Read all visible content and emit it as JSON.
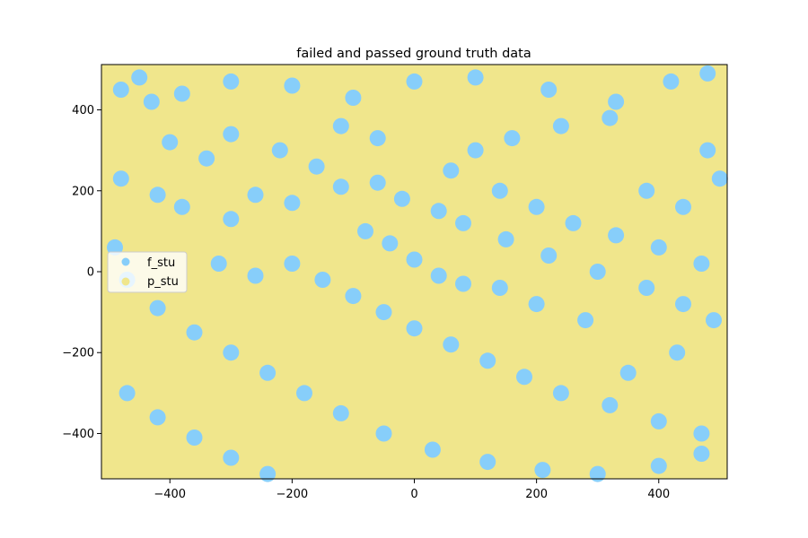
{
  "chart_data": {
    "type": "scatter",
    "title": "failed and passed ground truth data",
    "xlabel": "",
    "ylabel": "",
    "xlim": [
      -512,
      512
    ],
    "ylim": [
      -512,
      512
    ],
    "xticks": [
      -400,
      -200,
      0,
      200,
      400
    ],
    "yticks": [
      400,
      200,
      0,
      -200,
      -400
    ],
    "xtick_labels": [
      "−400",
      "−200",
      "0",
      "200",
      "400"
    ],
    "ytick_labels": [
      "400",
      "200",
      "0",
      "−200",
      "−400"
    ],
    "grid": false,
    "legend_position": "center-left",
    "series": [
      {
        "name": "f_stu",
        "color": "#87CEFA",
        "points": [
          [
            -480,
            450
          ],
          [
            -430,
            420
          ],
          [
            -380,
            440
          ],
          [
            -300,
            470
          ],
          [
            -200,
            460
          ],
          [
            -100,
            430
          ],
          [
            0,
            470
          ],
          [
            100,
            480
          ],
          [
            220,
            450
          ],
          [
            330,
            420
          ],
          [
            420,
            470
          ],
          [
            480,
            490
          ],
          [
            -480,
            230
          ],
          [
            -420,
            190
          ],
          [
            -380,
            160
          ],
          [
            -300,
            130
          ],
          [
            -260,
            190
          ],
          [
            -200,
            170
          ],
          [
            -120,
            210
          ],
          [
            -60,
            220
          ],
          [
            -20,
            180
          ],
          [
            40,
            150
          ],
          [
            80,
            120
          ],
          [
            150,
            80
          ],
          [
            220,
            40
          ],
          [
            300,
            0
          ],
          [
            380,
            -40
          ],
          [
            440,
            -80
          ],
          [
            490,
            -120
          ],
          [
            -490,
            60
          ],
          [
            -470,
            -20
          ],
          [
            -420,
            -90
          ],
          [
            -360,
            -150
          ],
          [
            -300,
            -200
          ],
          [
            -240,
            -250
          ],
          [
            -180,
            -300
          ],
          [
            -120,
            -350
          ],
          [
            -50,
            -400
          ],
          [
            30,
            -440
          ],
          [
            120,
            -470
          ],
          [
            210,
            -490
          ],
          [
            300,
            -500
          ],
          [
            400,
            -480
          ],
          [
            470,
            -450
          ],
          [
            -200,
            20
          ],
          [
            -150,
            -20
          ],
          [
            -100,
            -60
          ],
          [
            -50,
            -100
          ],
          [
            0,
            -140
          ],
          [
            60,
            -180
          ],
          [
            120,
            -220
          ],
          [
            180,
            -260
          ],
          [
            240,
            -300
          ],
          [
            320,
            -330
          ],
          [
            400,
            -370
          ],
          [
            470,
            -400
          ],
          [
            -470,
            -300
          ],
          [
            -420,
            -360
          ],
          [
            -360,
            -410
          ],
          [
            -300,
            -460
          ],
          [
            -240,
            -500
          ],
          [
            100,
            300
          ],
          [
            160,
            330
          ],
          [
            240,
            360
          ],
          [
            320,
            380
          ],
          [
            -120,
            360
          ],
          [
            -60,
            330
          ],
          [
            60,
            250
          ],
          [
            140,
            200
          ],
          [
            200,
            160
          ],
          [
            260,
            120
          ],
          [
            330,
            90
          ],
          [
            400,
            60
          ],
          [
            470,
            20
          ],
          [
            -320,
            20
          ],
          [
            -260,
            -10
          ],
          [
            -340,
            280
          ],
          [
            -400,
            320
          ],
          [
            -300,
            340
          ],
          [
            -220,
            300
          ],
          [
            -160,
            260
          ],
          [
            500,
            230
          ],
          [
            480,
            300
          ],
          [
            440,
            160
          ],
          [
            380,
            200
          ],
          [
            0,
            30
          ],
          [
            40,
            -10
          ],
          [
            80,
            -30
          ],
          [
            -40,
            70
          ],
          [
            -80,
            100
          ],
          [
            -450,
            480
          ],
          [
            350,
            -250
          ],
          [
            430,
            -200
          ],
          [
            280,
            -120
          ],
          [
            200,
            -80
          ],
          [
            140,
            -40
          ]
        ]
      },
      {
        "name": "p_stu",
        "color": "#F0E68C",
        "points": []
      }
    ]
  }
}
